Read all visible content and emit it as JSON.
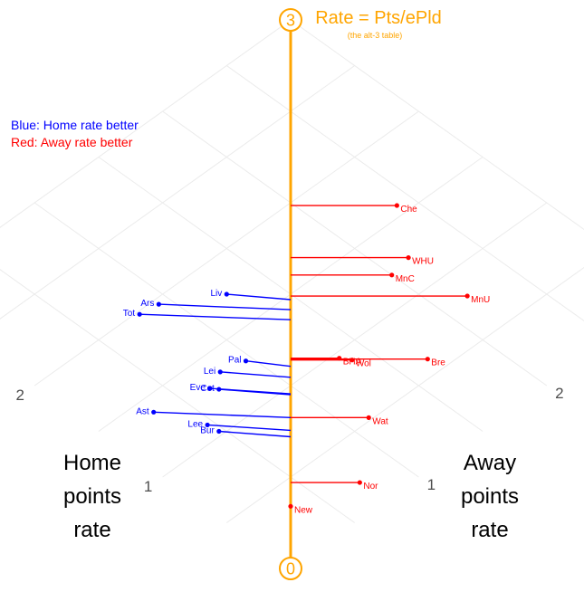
{
  "chart_data": {
    "type": "scatter",
    "title": "Rate = Pts/ePld",
    "subtitle": "(the alt-3 table)",
    "axis_top_label": "3",
    "axis_bottom_label": "0",
    "left_axis": {
      "label_lines": [
        "Home",
        "points",
        "rate"
      ],
      "ticks": [
        "1",
        "2",
        "3"
      ]
    },
    "right_axis": {
      "label_lines": [
        "Away",
        "points",
        "rate"
      ],
      "ticks": [
        "1",
        "2",
        "3"
      ]
    },
    "legend": [
      {
        "text": "Blue: Home rate better",
        "color": "#0000ff"
      },
      {
        "text": "Red: Away rate better",
        "color": "#ff0000"
      }
    ],
    "colors": {
      "axis": "#ffa500",
      "home": "#0000ff",
      "away": "#ff0000",
      "grid": "#ebebeb"
    },
    "range": [
      0,
      3
    ],
    "grid": true,
    "points": [
      {
        "team": "Che",
        "home": 1.57,
        "away": 2.4
      },
      {
        "team": "WHU",
        "home": 1.24,
        "away": 2.16
      },
      {
        "team": "MnC",
        "home": 1.21,
        "away": 2.0
      },
      {
        "team": "Liv",
        "home": 1.75,
        "away": 1.25
      },
      {
        "team": "Ars",
        "home": 1.96,
        "away": 0.93
      },
      {
        "team": "Tot",
        "home": 1.98,
        "away": 0.8
      },
      {
        "team": "MnU",
        "home": 0.8,
        "away": 2.18
      },
      {
        "team": "Pal",
        "home": 1.31,
        "away": 0.96
      },
      {
        "team": "BHA",
        "home": 0.96,
        "away": 1.34
      },
      {
        "team": "Wol",
        "home": 0.9,
        "away": 1.38
      },
      {
        "team": "Lei",
        "home": 1.35,
        "away": 0.8
      },
      {
        "team": "Bre",
        "home": 0.61,
        "away": 1.68
      },
      {
        "team": "Eve",
        "home": 1.3,
        "away": 0.67
      },
      {
        "team": "Cot",
        "home": 1.26,
        "away": 0.7
      },
      {
        "team": "Ast",
        "home": 1.39,
        "away": 0.32
      },
      {
        "team": "Lee",
        "home": 1.11,
        "away": 0.46
      },
      {
        "team": "Bur",
        "home": 1.03,
        "away": 0.47
      },
      {
        "team": "Wat",
        "home": 0.52,
        "away": 1.13
      },
      {
        "team": "Nor",
        "home": 0.2,
        "away": 0.74
      },
      {
        "team": "New",
        "home": 0.34,
        "away": 0.34
      }
    ]
  }
}
